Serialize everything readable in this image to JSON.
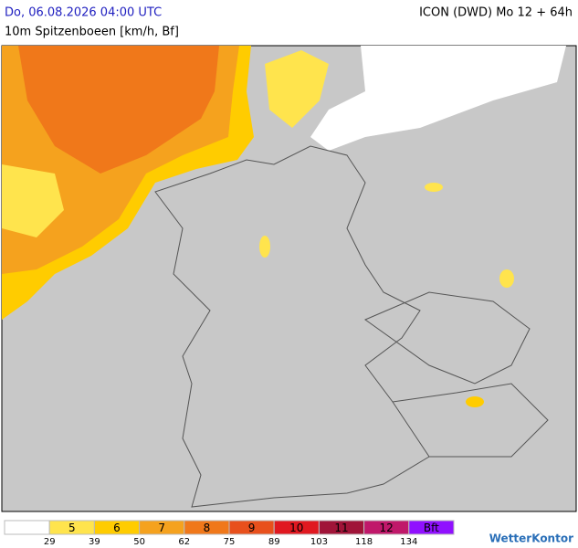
{
  "header": {
    "valid_time": "Do, 06.08.2026 04:00 UTC",
    "parameter": "10m Spitzenboeen [km/h, Bf]",
    "model": "ICON (DWD) Mo 12 + 64h"
  },
  "legend": {
    "classes": [
      {
        "label": null,
        "color": "#ffffff"
      },
      {
        "label": "5",
        "color": "#ffe44d"
      },
      {
        "label": "6",
        "color": "#ffcc00"
      },
      {
        "label": "7",
        "color": "#f5a21e"
      },
      {
        "label": "8",
        "color": "#f0781a"
      },
      {
        "label": "9",
        "color": "#e8501c"
      },
      {
        "label": "10",
        "color": "#e01820"
      },
      {
        "label": "11",
        "color": "#a01438"
      },
      {
        "label": "12",
        "color": "#c0186a"
      },
      {
        "label": "Bft",
        "color": "#9010ff"
      }
    ],
    "thresholds": [
      29,
      39,
      50,
      62,
      75,
      89,
      103,
      118,
      134
    ]
  },
  "brand": "WetterKontor"
}
